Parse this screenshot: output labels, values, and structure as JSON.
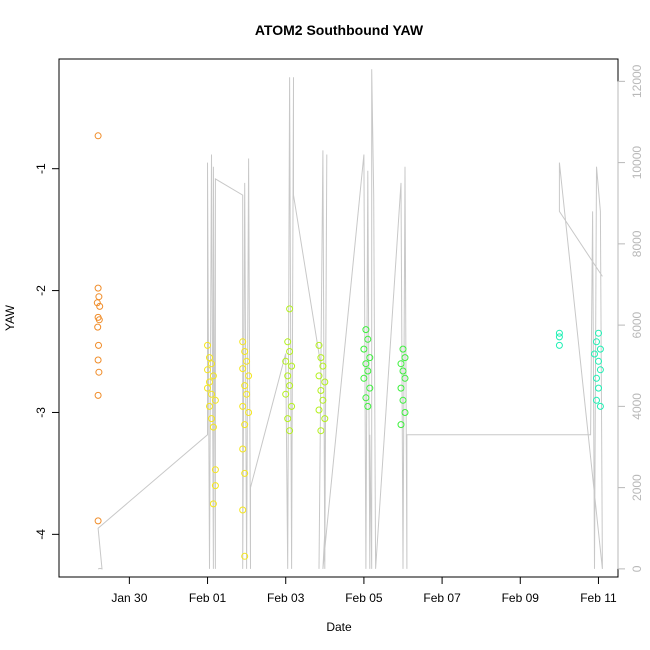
{
  "chart_data": {
    "type": "scatter",
    "title": "ATOM2 Southbound YAW",
    "xlabel": "Date",
    "ylabel": "YAW",
    "x_tick_labels": [
      "Jan 30",
      "Feb 01",
      "Feb 03",
      "Feb 05",
      "Feb 07",
      "Feb 09",
      "Feb 11"
    ],
    "x_tick_days": [
      30,
      32,
      34,
      36,
      38,
      40,
      42
    ],
    "xlim": [
      28.2,
      42.5
    ],
    "ylim": [
      -4.35,
      -0.1
    ],
    "y_ticks": [
      -4,
      -3,
      -2,
      -1
    ],
    "y2lim": [
      -200,
      12550
    ],
    "y2_ticks": [
      0,
      2000,
      4000,
      6000,
      8000,
      10000,
      12000
    ],
    "grid": false,
    "scatter_series": [
      {
        "color": "#f08c28",
        "points": [
          [
            29.2,
            -0.73
          ],
          [
            29.2,
            -1.98
          ],
          [
            29.22,
            -2.05
          ],
          [
            29.18,
            -2.1
          ],
          [
            29.24,
            -2.13
          ],
          [
            29.2,
            -2.22
          ],
          [
            29.23,
            -2.24
          ],
          [
            29.19,
            -2.3
          ],
          [
            29.21,
            -2.45
          ],
          [
            29.2,
            -2.57
          ],
          [
            29.22,
            -2.67
          ],
          [
            29.2,
            -2.86
          ],
          [
            29.2,
            -3.89
          ]
        ]
      },
      {
        "color": "#f5e61e",
        "points": [
          [
            32.0,
            -2.45
          ],
          [
            32.05,
            -2.55
          ],
          [
            32.1,
            -2.6
          ],
          [
            32.0,
            -2.65
          ],
          [
            32.15,
            -2.7
          ],
          [
            32.05,
            -2.75
          ],
          [
            32.0,
            -2.8
          ],
          [
            32.1,
            -2.85
          ],
          [
            32.2,
            -2.9
          ],
          [
            32.05,
            -2.95
          ],
          [
            32.1,
            -3.05
          ],
          [
            32.15,
            -3.12
          ],
          [
            32.2,
            -3.47
          ],
          [
            32.2,
            -3.6
          ],
          [
            32.15,
            -3.75
          ],
          [
            32.9,
            -2.42
          ],
          [
            32.95,
            -2.5
          ],
          [
            33.0,
            -2.58
          ],
          [
            32.9,
            -2.64
          ],
          [
            33.05,
            -2.7
          ],
          [
            32.95,
            -2.78
          ],
          [
            33.0,
            -2.85
          ],
          [
            32.9,
            -2.95
          ],
          [
            33.05,
            -3.0
          ],
          [
            32.95,
            -3.1
          ],
          [
            32.9,
            -3.3
          ],
          [
            32.95,
            -3.5
          ],
          [
            32.9,
            -3.8
          ],
          [
            32.95,
            -4.18
          ]
        ]
      },
      {
        "color": "#b4f01e",
        "points": [
          [
            34.1,
            -2.15
          ],
          [
            34.05,
            -2.42
          ],
          [
            34.1,
            -2.5
          ],
          [
            34.0,
            -2.58
          ],
          [
            34.15,
            -2.62
          ],
          [
            34.05,
            -2.7
          ],
          [
            34.1,
            -2.78
          ],
          [
            34.0,
            -2.85
          ],
          [
            34.15,
            -2.95
          ],
          [
            34.05,
            -3.05
          ],
          [
            34.1,
            -3.15
          ],
          [
            34.85,
            -2.45
          ],
          [
            34.9,
            -2.55
          ],
          [
            34.95,
            -2.62
          ],
          [
            34.85,
            -2.7
          ],
          [
            35.0,
            -2.75
          ],
          [
            34.9,
            -2.82
          ],
          [
            34.95,
            -2.9
          ],
          [
            34.85,
            -2.98
          ],
          [
            35.0,
            -3.05
          ],
          [
            34.9,
            -3.15
          ]
        ]
      },
      {
        "color": "#3cf03c",
        "points": [
          [
            36.05,
            -2.32
          ],
          [
            36.1,
            -2.4
          ],
          [
            36.0,
            -2.48
          ],
          [
            36.15,
            -2.55
          ],
          [
            36.05,
            -2.6
          ],
          [
            36.1,
            -2.66
          ],
          [
            36.0,
            -2.72
          ],
          [
            36.15,
            -2.8
          ],
          [
            36.05,
            -2.88
          ],
          [
            36.1,
            -2.95
          ],
          [
            37.0,
            -2.48
          ],
          [
            37.05,
            -2.55
          ],
          [
            36.95,
            -2.6
          ],
          [
            37.0,
            -2.66
          ],
          [
            37.05,
            -2.72
          ],
          [
            36.95,
            -2.8
          ],
          [
            37.0,
            -2.9
          ],
          [
            37.05,
            -3.0
          ],
          [
            36.95,
            -3.1
          ]
        ]
      },
      {
        "color": "#1ef0b4",
        "points": [
          [
            41.0,
            -2.35
          ],
          [
            41.0,
            -2.38
          ],
          [
            41.0,
            -2.45
          ],
          [
            42.0,
            -2.35
          ],
          [
            41.95,
            -2.42
          ],
          [
            42.05,
            -2.48
          ],
          [
            41.9,
            -2.52
          ],
          [
            42.0,
            -2.58
          ],
          [
            42.05,
            -2.65
          ],
          [
            41.95,
            -2.72
          ],
          [
            42.0,
            -2.8
          ],
          [
            41.95,
            -2.9
          ],
          [
            42.05,
            -2.95
          ]
        ]
      }
    ],
    "line_series": {
      "color": "#c8c8c8",
      "points": [
        [
          29.2,
          -0.6
        ],
        [
          29.25,
          11.2
        ],
        [
          29.3,
          0
        ],
        [
          29.2,
          1000
        ],
        [
          32.0,
          3300
        ],
        [
          32.0,
          10000
        ],
        [
          32.05,
          0
        ],
        [
          32.1,
          10200
        ],
        [
          32.15,
          0
        ],
        [
          32.15,
          9900
        ],
        [
          32.2,
          0
        ],
        [
          32.2,
          9600
        ],
        [
          32.9,
          9200
        ],
        [
          32.9,
          0
        ],
        [
          32.95,
          9500
        ],
        [
          33.0,
          0
        ],
        [
          33.05,
          10100
        ],
        [
          33.1,
          0
        ],
        [
          33.1,
          2000
        ],
        [
          34.0,
          5300
        ],
        [
          34.05,
          0
        ],
        [
          34.1,
          12100
        ],
        [
          34.15,
          0
        ],
        [
          34.2,
          12100
        ],
        [
          34.2,
          9200
        ],
        [
          34.9,
          5000
        ],
        [
          34.85,
          0
        ],
        [
          34.95,
          10300
        ],
        [
          35.0,
          0
        ],
        [
          35.05,
          10200
        ],
        [
          35.0,
          900
        ],
        [
          34.95,
          0
        ],
        [
          35.05,
          1000
        ],
        [
          36.0,
          10200
        ],
        [
          36.05,
          0
        ],
        [
          36.1,
          9800
        ],
        [
          36.15,
          0
        ],
        [
          36.15,
          3300
        ],
        [
          36.2,
          0
        ],
        [
          36.2,
          12300
        ],
        [
          36.25,
          9200
        ],
        [
          36.3,
          0
        ],
        [
          36.95,
          9500
        ],
        [
          37.0,
          0
        ],
        [
          37.05,
          9900
        ],
        [
          37.1,
          0
        ],
        [
          37.1,
          3300
        ],
        [
          41.8,
          3300
        ],
        [
          41.85,
          8800
        ],
        [
          41.9,
          0
        ],
        [
          41.95,
          9900
        ],
        [
          42.05,
          8800
        ],
        [
          42.1,
          0
        ],
        [
          41.0,
          10000
        ],
        [
          41.0,
          8800
        ],
        [
          42.1,
          7200
        ]
      ]
    }
  }
}
